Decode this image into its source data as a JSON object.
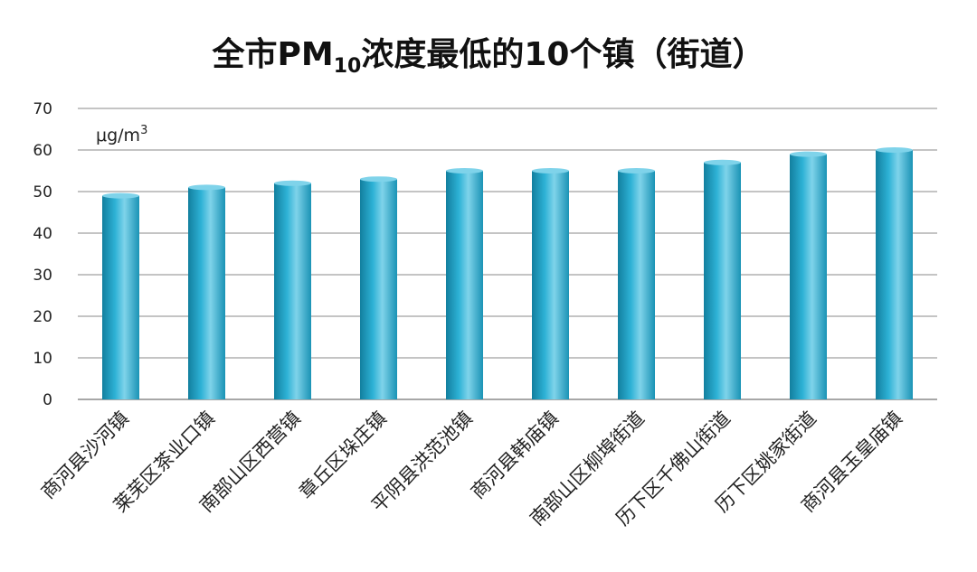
{
  "chart_data": {
    "type": "bar",
    "title": {
      "before": "全市PM",
      "sub": "10",
      "after": "浓度最低的10个镇（街道）"
    },
    "unit": {
      "main": "μg/m",
      "sup": "3"
    },
    "categories": [
      "商河县沙河镇",
      "莱芜区茶业口镇",
      "南部山区西营镇",
      "章丘区垛庄镇",
      "平阴县洪范池镇",
      "商河县韩庙镇",
      "南部山区柳埠街道",
      "历下区千佛山街道",
      "历下区姚家街道",
      "商河县玉皇庙镇"
    ],
    "values": [
      49,
      51,
      52,
      53,
      55,
      55,
      55,
      57,
      59,
      60
    ],
    "ylim": [
      0,
      70
    ],
    "yticks": [
      0,
      10,
      20,
      30,
      40,
      50,
      60,
      70
    ],
    "grid": true,
    "colors": {
      "bar_light": "#7fd3ea",
      "bar_mid": "#2eb2d6",
      "bar_dark": "#127f9e",
      "grid": "#8a8a8a"
    }
  }
}
